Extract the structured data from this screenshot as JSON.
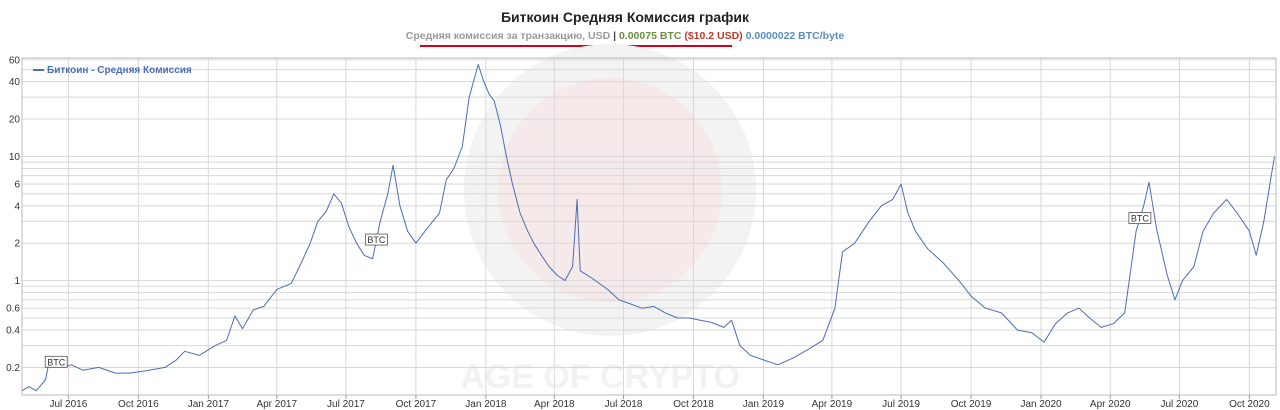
{
  "header": {
    "title": "Биткоин Средняя Комиссия график",
    "subtitle_metric": "Средняя комиссия за транзакцию, USD",
    "subtitle_sep": " | ",
    "subtitle_btc": "0.00075 BTC",
    "subtitle_usd": "($10.2 USD)",
    "subtitle_byte": "0.0000022 BTC/byte"
  },
  "watermark": {
    "text": "AGE OF CRYPTO"
  },
  "colors": {
    "line": "#4a6fb5",
    "grid": "#d8d8d8",
    "accent_underline": "#d0021b"
  },
  "chart_data": {
    "type": "line",
    "title": "Биткоин Средняя Комиссия график",
    "ylabel": "",
    "xlabel": "",
    "y_scale": "log",
    "ylim": [
      0.12,
      62
    ],
    "x_range": [
      "2016-05-01",
      "2020-11-05"
    ],
    "grid": true,
    "legend_position": "top-left",
    "y_ticks": [
      0.2,
      0.4,
      0.6,
      0.8,
      1,
      2,
      4,
      6,
      8,
      10,
      20,
      40,
      60
    ],
    "y_tick_labels": [
      "0.2",
      "0.4",
      "0.6",
      "",
      "1",
      "2",
      "4",
      "6",
      "",
      "10",
      "20",
      "40",
      "60"
    ],
    "x_ticks": [
      {
        "date": "2016-07-01",
        "label": "Jul 2016"
      },
      {
        "date": "2016-10-01",
        "label": "Oct 2016"
      },
      {
        "date": "2017-01-01",
        "label": "Jan 2017"
      },
      {
        "date": "2017-04-01",
        "label": "Apr 2017"
      },
      {
        "date": "2017-07-01",
        "label": "Jul 2017"
      },
      {
        "date": "2017-10-01",
        "label": "Oct 2017"
      },
      {
        "date": "2018-01-01",
        "label": "Jan 2018"
      },
      {
        "date": "2018-04-01",
        "label": "Apr 2018"
      },
      {
        "date": "2018-07-01",
        "label": "Jul 2018"
      },
      {
        "date": "2018-10-01",
        "label": "Oct 2018"
      },
      {
        "date": "2019-01-01",
        "label": "Jan 2019"
      },
      {
        "date": "2019-04-01",
        "label": "Apr 2019"
      },
      {
        "date": "2019-07-01",
        "label": "Jul 2019"
      },
      {
        "date": "2019-10-01",
        "label": "Oct 2019"
      },
      {
        "date": "2020-01-01",
        "label": "Jan 2020"
      },
      {
        "date": "2020-04-01",
        "label": "Apr 2020"
      },
      {
        "date": "2020-07-01",
        "label": "Jul 2020"
      },
      {
        "date": "2020-10-01",
        "label": "Oct 2020"
      }
    ],
    "series": [
      {
        "name": "Биткоин - Средняя Комиссия",
        "points": [
          [
            "2016-05-01",
            0.13
          ],
          [
            "2016-05-10",
            0.14
          ],
          [
            "2016-05-20",
            0.13
          ],
          [
            "2016-06-01",
            0.16
          ],
          [
            "2016-06-06",
            0.23
          ],
          [
            "2016-06-15",
            0.22
          ],
          [
            "2016-06-25",
            0.2
          ],
          [
            "2016-07-05",
            0.21
          ],
          [
            "2016-07-20",
            0.19
          ],
          [
            "2016-08-10",
            0.2
          ],
          [
            "2016-09-01",
            0.18
          ],
          [
            "2016-09-20",
            0.18
          ],
          [
            "2016-10-15",
            0.19
          ],
          [
            "2016-11-05",
            0.2
          ],
          [
            "2016-11-20",
            0.23
          ],
          [
            "2016-12-01",
            0.27
          ],
          [
            "2016-12-20",
            0.25
          ],
          [
            "2017-01-10",
            0.3
          ],
          [
            "2017-01-25",
            0.33
          ],
          [
            "2017-02-05",
            0.52
          ],
          [
            "2017-02-15",
            0.41
          ],
          [
            "2017-03-01",
            0.58
          ],
          [
            "2017-03-15",
            0.62
          ],
          [
            "2017-04-01",
            0.85
          ],
          [
            "2017-04-20",
            0.95
          ],
          [
            "2017-05-01",
            1.3
          ],
          [
            "2017-05-15",
            2.0
          ],
          [
            "2017-05-25",
            3.0
          ],
          [
            "2017-06-05",
            3.6
          ],
          [
            "2017-06-15",
            5.0
          ],
          [
            "2017-06-25",
            4.2
          ],
          [
            "2017-07-05",
            2.7
          ],
          [
            "2017-07-15",
            2.0
          ],
          [
            "2017-07-25",
            1.6
          ],
          [
            "2017-08-05",
            1.5
          ],
          [
            "2017-08-15",
            3.0
          ],
          [
            "2017-08-25",
            5.0
          ],
          [
            "2017-09-01",
            8.5
          ],
          [
            "2017-09-10",
            4.0
          ],
          [
            "2017-09-20",
            2.5
          ],
          [
            "2017-10-01",
            2.0
          ],
          [
            "2017-10-15",
            2.6
          ],
          [
            "2017-11-01",
            3.5
          ],
          [
            "2017-11-10",
            6.5
          ],
          [
            "2017-11-20",
            8.0
          ],
          [
            "2017-12-01",
            12.0
          ],
          [
            "2017-12-10",
            30.0
          ],
          [
            "2017-12-18",
            45.0
          ],
          [
            "2017-12-22",
            55.0
          ],
          [
            "2017-12-28",
            42.0
          ],
          [
            "2018-01-05",
            32.0
          ],
          [
            "2018-01-12",
            28.0
          ],
          [
            "2018-01-20",
            18.0
          ],
          [
            "2018-01-28",
            10.0
          ],
          [
            "2018-02-05",
            6.0
          ],
          [
            "2018-02-15",
            3.5
          ],
          [
            "2018-02-25",
            2.5
          ],
          [
            "2018-03-05",
            2.0
          ],
          [
            "2018-03-15",
            1.6
          ],
          [
            "2018-03-25",
            1.3
          ],
          [
            "2018-04-05",
            1.1
          ],
          [
            "2018-04-15",
            1.0
          ],
          [
            "2018-04-25",
            1.3
          ],
          [
            "2018-05-01",
            4.5
          ],
          [
            "2018-05-05",
            1.2
          ],
          [
            "2018-05-15",
            1.1
          ],
          [
            "2018-05-25",
            1.0
          ],
          [
            "2018-06-10",
            0.85
          ],
          [
            "2018-06-25",
            0.7
          ],
          [
            "2018-07-10",
            0.65
          ],
          [
            "2018-07-25",
            0.6
          ],
          [
            "2018-08-10",
            0.62
          ],
          [
            "2018-08-25",
            0.55
          ],
          [
            "2018-09-10",
            0.5
          ],
          [
            "2018-09-25",
            0.5
          ],
          [
            "2018-10-10",
            0.48
          ],
          [
            "2018-10-25",
            0.46
          ],
          [
            "2018-11-10",
            0.42
          ],
          [
            "2018-11-20",
            0.48
          ],
          [
            "2018-12-01",
            0.3
          ],
          [
            "2018-12-15",
            0.25
          ],
          [
            "2019-01-01",
            0.23
          ],
          [
            "2019-01-20",
            0.21
          ],
          [
            "2019-02-10",
            0.24
          ],
          [
            "2019-03-01",
            0.28
          ],
          [
            "2019-03-20",
            0.33
          ],
          [
            "2019-04-05",
            0.6
          ],
          [
            "2019-04-15",
            1.7
          ],
          [
            "2019-05-01",
            2.0
          ],
          [
            "2019-05-20",
            3.0
          ],
          [
            "2019-06-05",
            4.0
          ],
          [
            "2019-06-20",
            4.5
          ],
          [
            "2019-07-01",
            6.0
          ],
          [
            "2019-07-10",
            3.5
          ],
          [
            "2019-07-20",
            2.5
          ],
          [
            "2019-08-05",
            1.8
          ],
          [
            "2019-08-25",
            1.4
          ],
          [
            "2019-09-15",
            1.0
          ],
          [
            "2019-10-01",
            0.75
          ],
          [
            "2019-10-20",
            0.6
          ],
          [
            "2019-11-10",
            0.55
          ],
          [
            "2019-12-01",
            0.4
          ],
          [
            "2019-12-20",
            0.38
          ],
          [
            "2020-01-05",
            0.32
          ],
          [
            "2020-01-20",
            0.45
          ],
          [
            "2020-02-05",
            0.55
          ],
          [
            "2020-02-20",
            0.6
          ],
          [
            "2020-03-05",
            0.5
          ],
          [
            "2020-03-20",
            0.42
          ],
          [
            "2020-04-05",
            0.45
          ],
          [
            "2020-04-20",
            0.55
          ],
          [
            "2020-05-05",
            2.5
          ],
          [
            "2020-05-15",
            4.0
          ],
          [
            "2020-05-22",
            6.2
          ],
          [
            "2020-06-01",
            2.6
          ],
          [
            "2020-06-15",
            1.1
          ],
          [
            "2020-06-25",
            0.7
          ],
          [
            "2020-07-05",
            1.0
          ],
          [
            "2020-07-20",
            1.3
          ],
          [
            "2020-08-01",
            2.5
          ],
          [
            "2020-08-15",
            3.5
          ],
          [
            "2020-09-01",
            4.5
          ],
          [
            "2020-09-15",
            3.5
          ],
          [
            "2020-10-01",
            2.5
          ],
          [
            "2020-10-10",
            1.6
          ],
          [
            "2020-10-20",
            3.0
          ],
          [
            "2020-10-28",
            6.0
          ],
          [
            "2020-11-03",
            10.0
          ]
        ]
      }
    ],
    "annotations": [
      {
        "label": "BTC",
        "date": "2016-06-15"
      },
      {
        "label": "BTC",
        "date": "2017-08-10"
      },
      {
        "label": "BTC",
        "date": "2020-05-10"
      }
    ]
  }
}
